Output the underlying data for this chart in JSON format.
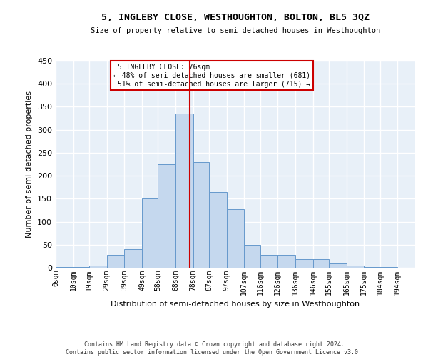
{
  "title": "5, INGLEBY CLOSE, WESTHOUGHTON, BOLTON, BL5 3QZ",
  "subtitle": "Size of property relative to semi-detached houses in Westhoughton",
  "xlabel": "Distribution of semi-detached houses by size in Westhoughton",
  "ylabel": "Number of semi-detached properties",
  "footnote": "Contains HM Land Registry data © Crown copyright and database right 2024.\nContains public sector information licensed under the Open Government Licence v3.0.",
  "bar_color": "#c5d8ee",
  "bar_edge_color": "#6699cc",
  "bg_color": "#e8f0f8",
  "grid_color": "#ffffff",
  "bin_labels": [
    "0sqm",
    "10sqm",
    "19sqm",
    "29sqm",
    "39sqm",
    "49sqm",
    "58sqm",
    "68sqm",
    "78sqm",
    "87sqm",
    "97sqm",
    "107sqm",
    "116sqm",
    "126sqm",
    "136sqm",
    "146sqm",
    "155sqm",
    "165sqm",
    "175sqm",
    "184sqm",
    "194sqm"
  ],
  "bin_edges": [
    0,
    10,
    19,
    29,
    39,
    49,
    58,
    68,
    78,
    87,
    97,
    107,
    116,
    126,
    136,
    146,
    155,
    165,
    175,
    184,
    194
  ],
  "bar_heights": [
    1,
    2,
    5,
    28,
    40,
    150,
    225,
    335,
    230,
    165,
    128,
    50,
    28,
    28,
    18,
    18,
    10,
    5,
    2,
    1
  ],
  "property_size": 76,
  "property_label": "5 INGLEBY CLOSE: 76sqm",
  "pct_smaller": 48,
  "pct_smaller_count": 681,
  "pct_larger": 51,
  "pct_larger_count": 715,
  "vline_color": "#cc0000",
  "box_edge_color": "#cc0000",
  "ylim": [
    0,
    450
  ],
  "yticks": [
    0,
    50,
    100,
    150,
    200,
    250,
    300,
    350,
    400,
    450
  ]
}
